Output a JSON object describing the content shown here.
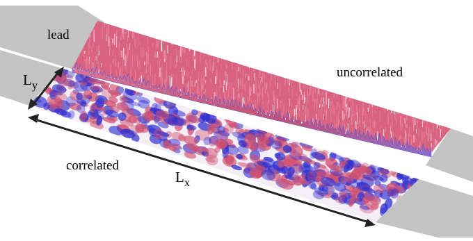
{
  "labels": {
    "lead": "lead",
    "uncorrelated": "uncorrelated",
    "correlated": "correlated",
    "ly_main": "L",
    "ly_sub": "y",
    "lx_main": "L",
    "lx_sub": "x"
  },
  "colors": {
    "lead_gray": "#c4c4c4",
    "surface_red": "#d05070",
    "surface_blue": "#3030d0",
    "surface_white": "#f4eef6",
    "arrow": "#222222"
  }
}
